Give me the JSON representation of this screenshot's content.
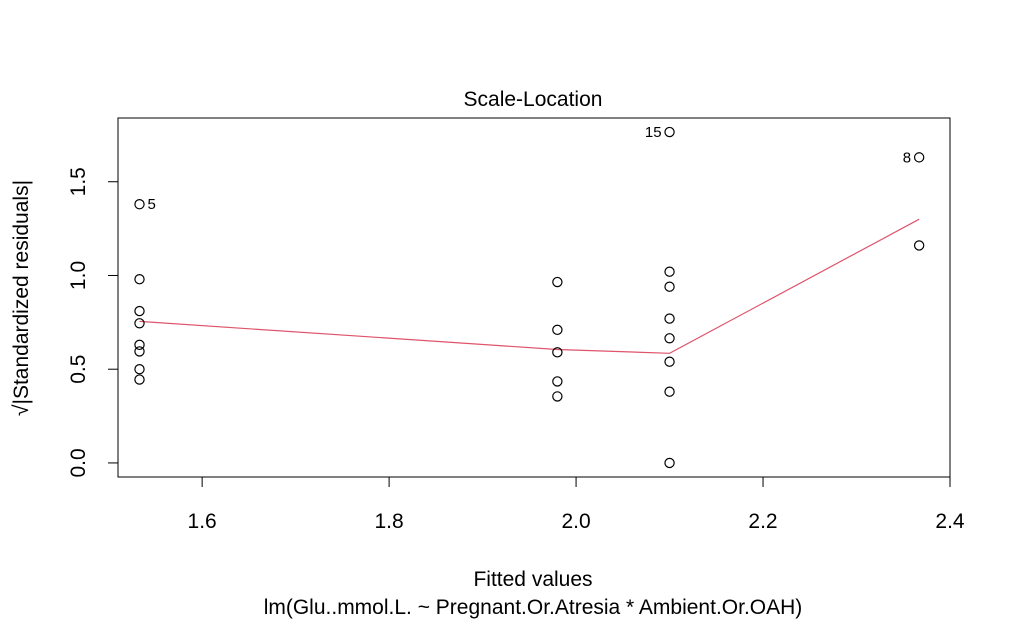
{
  "chart_data": {
    "type": "scatter",
    "title": "Scale-Location",
    "xlabel": "Fitted values",
    "subtitle": "lm(Glu..mmol.L. ~ Pregnant.Or.Atresia * Ambient.Or.OAH)",
    "ylabel": "√|Standardized residuals|",
    "xlim": [
      1.51,
      2.4
    ],
    "ylim": [
      -0.075,
      1.84
    ],
    "x_ticks": [
      1.6,
      1.8,
      2.0,
      2.2,
      2.4
    ],
    "y_ticks": [
      0.0,
      0.5,
      1.0,
      1.5
    ],
    "x_tick_labels": [
      "1.6",
      "1.8",
      "2.0",
      "2.2",
      "2.4"
    ],
    "y_tick_labels": [
      "0.0",
      "0.5",
      "1.0",
      "1.5"
    ],
    "points": [
      {
        "x": 1.533,
        "y": 1.38,
        "label": "5"
      },
      {
        "x": 1.533,
        "y": 0.98
      },
      {
        "x": 1.533,
        "y": 0.81
      },
      {
        "x": 1.533,
        "y": 0.745
      },
      {
        "x": 1.533,
        "y": 0.63
      },
      {
        "x": 1.533,
        "y": 0.595
      },
      {
        "x": 1.533,
        "y": 0.5
      },
      {
        "x": 1.533,
        "y": 0.445
      },
      {
        "x": 1.98,
        "y": 0.965
      },
      {
        "x": 1.98,
        "y": 0.71
      },
      {
        "x": 1.98,
        "y": 0.59
      },
      {
        "x": 1.98,
        "y": 0.435
      },
      {
        "x": 1.98,
        "y": 0.355
      },
      {
        "x": 2.1,
        "y": 1.765,
        "label": "15"
      },
      {
        "x": 2.1,
        "y": 1.02
      },
      {
        "x": 2.1,
        "y": 0.94
      },
      {
        "x": 2.1,
        "y": 0.77
      },
      {
        "x": 2.1,
        "y": 0.665
      },
      {
        "x": 2.1,
        "y": 0.54
      },
      {
        "x": 2.1,
        "y": 0.38
      },
      {
        "x": 2.1,
        "y": 0.0
      },
      {
        "x": 2.367,
        "y": 1.63,
        "label": "8"
      },
      {
        "x": 2.367,
        "y": 1.16
      }
    ],
    "smooth_line": {
      "color": "#DF536B",
      "points": [
        [
          1.533,
          0.755
        ],
        [
          1.98,
          0.605
        ],
        [
          2.1,
          0.585
        ],
        [
          2.367,
          1.3
        ]
      ]
    },
    "grid": false
  }
}
